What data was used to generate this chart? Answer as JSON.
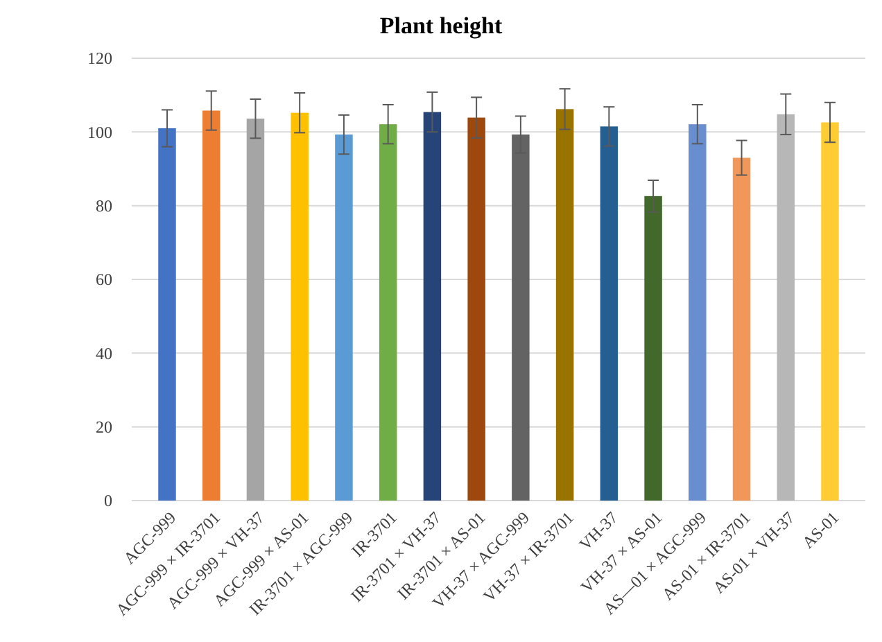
{
  "chart_data": {
    "type": "bar",
    "title": "Plant height",
    "categories": [
      "AGC-999",
      "AGC-999 × IR-3701",
      "AGC-999 × VH-37",
      "AGC-999 × AS-01",
      "IR-3701 × AGC-999",
      "IR-3701",
      "IR-3701 × VH-37",
      "IR-3701 × AS-01",
      "VH-37 × AGC-999",
      "VH-37 × IR-3701",
      "VH-37",
      "VH-37 × AS-01",
      "AS—01 × AGC-999",
      "AS-01 × IR-3701",
      "AS-01 × VH-37",
      "AS-01"
    ],
    "values": [
      101,
      105.8,
      103.6,
      105.2,
      99.3,
      102.1,
      105.4,
      103.9,
      99.3,
      106.2,
      101.5,
      82.6,
      102.1,
      93,
      104.8,
      102.6
    ],
    "errors": [
      5,
      5.3,
      5.3,
      5.4,
      5.3,
      5.3,
      5.4,
      5.5,
      5,
      5.5,
      5.3,
      4.3,
      5.3,
      4.7,
      5.5,
      5.4
    ],
    "colors": [
      "#4472c4",
      "#ed7d31",
      "#a5a5a5",
      "#ffc000",
      "#5b9bd5",
      "#70ad47",
      "#264478",
      "#9e480e",
      "#636363",
      "#997300",
      "#255e91",
      "#43682b",
      "#698ed0",
      "#f1975a",
      "#b7b7b7",
      "#ffcd33"
    ],
    "ylim": [
      0,
      120
    ],
    "yticks": [
      0,
      20,
      40,
      60,
      80,
      100,
      120
    ],
    "grid": "y"
  }
}
